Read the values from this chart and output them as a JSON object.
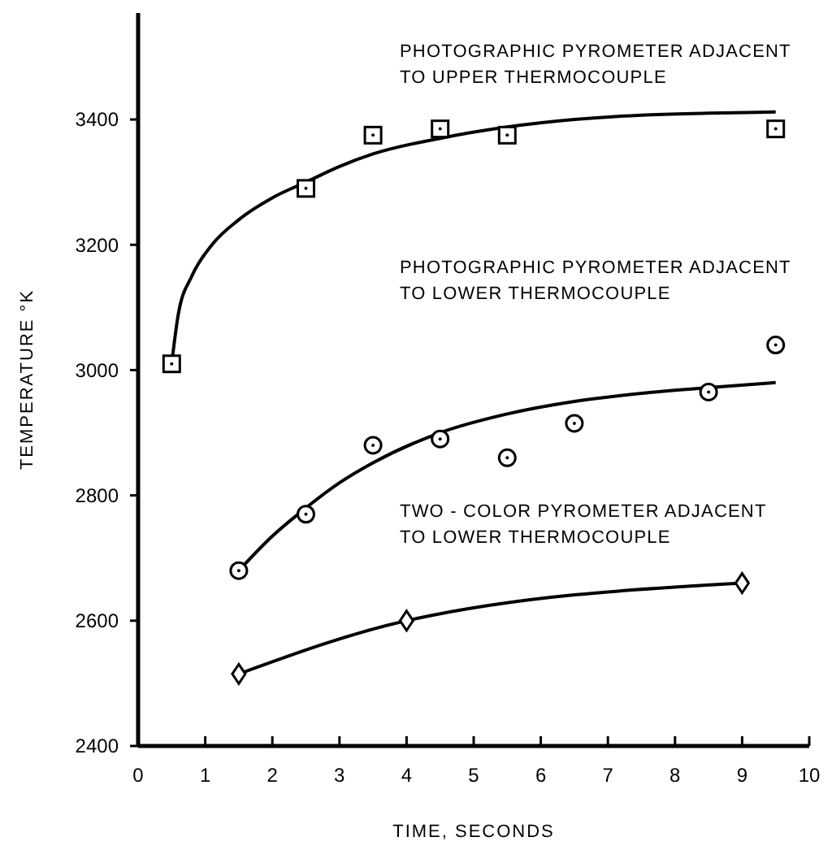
{
  "chart_data": {
    "type": "scatter",
    "xlabel": "TIME, SECONDS",
    "ylabel": "TEMPERATURE °K",
    "xlim": [
      0,
      10
    ],
    "ylim": [
      2400,
      3570
    ],
    "xticks": [
      0,
      1,
      2,
      3,
      4,
      5,
      6,
      7,
      8,
      9,
      10
    ],
    "yticks": [
      2400,
      2600,
      2800,
      3000,
      3200,
      3400
    ],
    "grid": false,
    "series": [
      {
        "marker": "square",
        "color": "#000000",
        "x": [
          0.5,
          2.5,
          3.5,
          4.5,
          5.5,
          9.5
        ],
        "values": [
          3010,
          3290,
          3375,
          3385,
          3375,
          3385
        ]
      },
      {
        "type": "line",
        "marker": "none",
        "color": "#000000",
        "x": [
          0.5,
          0.6,
          0.8,
          1.1,
          1.5,
          2,
          2.5,
          3,
          3.5,
          4.5,
          5.5,
          6.5,
          7.5,
          8.5,
          9.5
        ],
        "values": [
          3010,
          3090,
          3150,
          3200,
          3240,
          3275,
          3300,
          3325,
          3345,
          3370,
          3388,
          3400,
          3407,
          3410,
          3412
        ]
      },
      {
        "marker": "circle",
        "color": "#000000",
        "x": [
          1.5,
          2.5,
          3.5,
          4.5,
          5.5,
          6.5,
          8.5,
          9.5
        ],
        "values": [
          2680,
          2770,
          2880,
          2890,
          2860,
          2915,
          2965,
          3040
        ]
      },
      {
        "type": "line",
        "marker": "none",
        "color": "#000000",
        "x": [
          1.5,
          2,
          2.5,
          3,
          3.5,
          4.5,
          5.5,
          6.5,
          7.5,
          8.5,
          9.5
        ],
        "values": [
          2680,
          2735,
          2780,
          2820,
          2852,
          2900,
          2930,
          2950,
          2963,
          2972,
          2980
        ]
      },
      {
        "type": "line",
        "marker": "diamond",
        "color": "#000000",
        "x": [
          1.5,
          4,
          9
        ],
        "values": [
          2515,
          2600,
          2660
        ]
      }
    ],
    "annotations": [
      "PHOTOGRAPHIC PYROMETER ADJACENT\nTO UPPER THERMOCOUPLE",
      "PHOTOGRAPHIC PYROMETER ADJACENT\nTO LOWER THERMOCOUPLE",
      "TWO - COLOR PYROMETER ADJACENT\nTO LOWER THERMOCOUPLE"
    ]
  }
}
